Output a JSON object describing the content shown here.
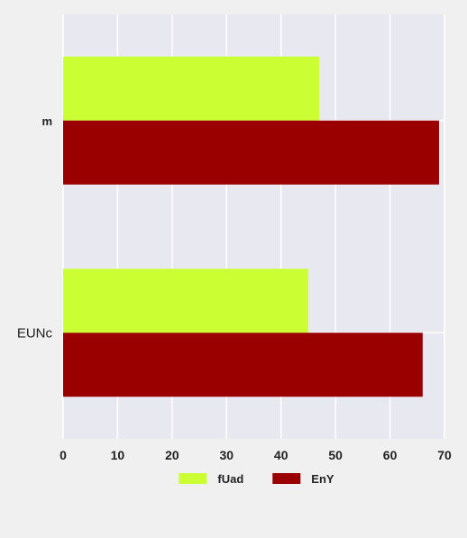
{
  "chart_data": {
    "type": "bar",
    "orientation": "horizontal",
    "categories": [
      "m",
      "EUNc"
    ],
    "series": [
      {
        "name": "fUad",
        "color": "#ccff33",
        "values": [
          47,
          45
        ]
      },
      {
        "name": "EnY",
        "color": "#9b0000",
        "values": [
          69,
          66
        ]
      }
    ],
    "title": "",
    "xlabel": "",
    "ylabel": "",
    "xlim": [
      0,
      70
    ],
    "xticks": [
      0,
      10,
      20,
      30,
      40,
      50,
      60,
      70
    ],
    "grid": true,
    "legend_position": "bottom-center",
    "plot_background": "#e8e8f1",
    "page_background": "#f0f0f0"
  }
}
